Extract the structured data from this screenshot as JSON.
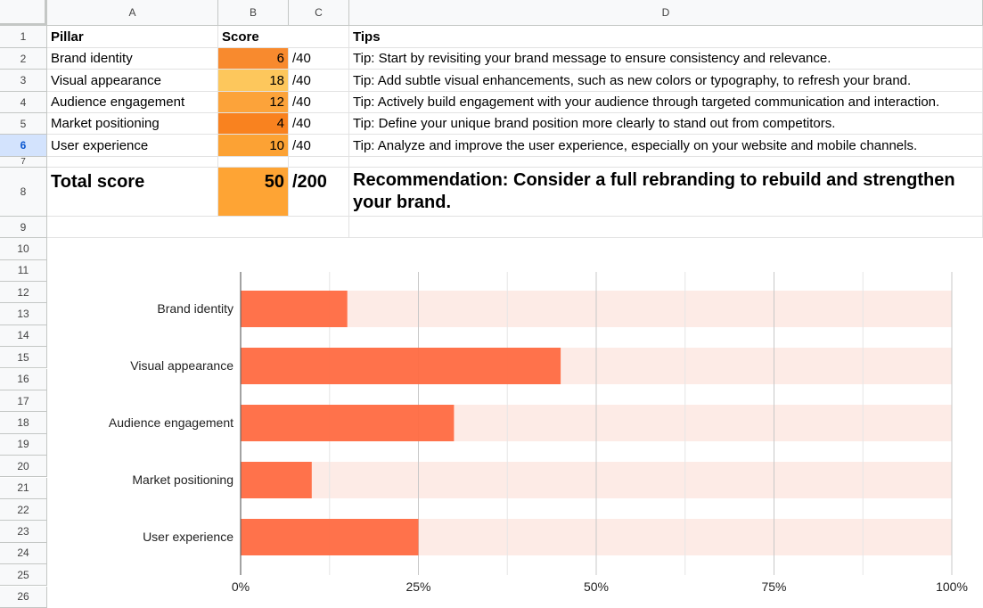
{
  "columns": [
    "A",
    "B",
    "C",
    "D"
  ],
  "row_numbers": [
    "1",
    "2",
    "3",
    "4",
    "5",
    "6",
    "7",
    "8",
    "9",
    "10",
    "11",
    "12",
    "13",
    "14",
    "15",
    "16",
    "17",
    "18",
    "19",
    "20",
    "21",
    "22",
    "23",
    "24",
    "25",
    "26"
  ],
  "selected_row": "6",
  "table": {
    "headers": {
      "pillar": "Pillar",
      "score": "Score",
      "tips": "Tips"
    },
    "rows": [
      {
        "pillar": "Brand identity",
        "score": "6",
        "max": "/40",
        "tip": "Tip: Start by revisiting your brand message to ensure consistency and relevance.",
        "color": "#f88a2e"
      },
      {
        "pillar": "Visual appearance",
        "score": "18",
        "max": "/40",
        "tip": "Tip: Add subtle visual enhancements, such as new colors or typography, to refresh your brand.",
        "color": "#fdc75c"
      },
      {
        "pillar": "Audience engagement",
        "score": "12",
        "max": "/40",
        "tip": "Tip: Actively build engagement with your audience through targeted communication and interaction.",
        "color": "#fca33a"
      },
      {
        "pillar": "Market positioning",
        "score": "4",
        "max": "/40",
        "tip": "Tip: Define your unique brand position more clearly to stand out from competitors.",
        "color": "#f9821f"
      },
      {
        "pillar": "User experience",
        "score": "10",
        "max": "/40",
        "tip": "Tip: Analyze and improve the user experience, especially on your website and mobile channels.",
        "color": "#fca234"
      }
    ],
    "total": {
      "label": "Total score",
      "score": "50",
      "max": "/200",
      "color": "#fea434"
    },
    "recommendation": "Recommendation: Consider a full rebranding to rebuild and strengthen your brand."
  },
  "chart_data": {
    "type": "bar",
    "orientation": "horizontal",
    "categories": [
      "Brand identity",
      "Visual appearance",
      "Audience engagement",
      "Market positioning",
      "User experience"
    ],
    "values": [
      15,
      45,
      30,
      10,
      25
    ],
    "xlim": [
      0,
      100
    ],
    "x_ticks": [
      "0%",
      "25%",
      "50%",
      "75%",
      "100%"
    ],
    "bar_color": "#ff6b42",
    "track_color": "#fdebe6",
    "grid": true
  }
}
